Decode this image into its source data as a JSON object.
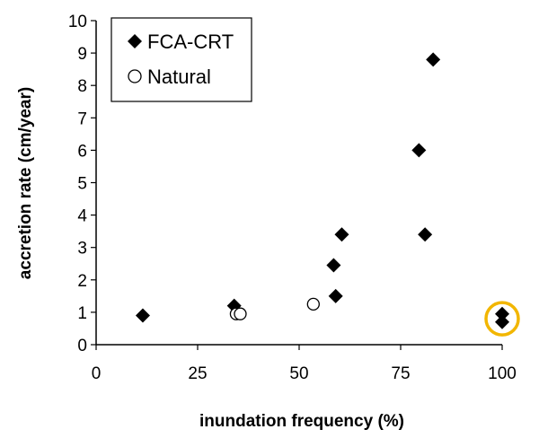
{
  "chart_data": {
    "type": "scatter",
    "title": "",
    "xlabel": "inundation frequency (%)",
    "ylabel": "accretion rate (cm/year)",
    "xlim": [
      0,
      100
    ],
    "ylim": [
      0,
      10
    ],
    "x_ticks": [
      0,
      25,
      50,
      75,
      100
    ],
    "y_ticks": [
      0,
      1,
      2,
      3,
      4,
      5,
      6,
      7,
      8,
      9,
      10
    ],
    "grid": false,
    "legend_position": "top-left",
    "series": [
      {
        "name": "FCA-CRT",
        "marker": "filled-diamond",
        "color": "#000000",
        "points": [
          {
            "x": 11.5,
            "y": 0.9
          },
          {
            "x": 34,
            "y": 1.2
          },
          {
            "x": 58.5,
            "y": 2.45
          },
          {
            "x": 59,
            "y": 1.5
          },
          {
            "x": 60.5,
            "y": 3.4
          },
          {
            "x": 79.5,
            "y": 6.0
          },
          {
            "x": 81,
            "y": 3.4
          },
          {
            "x": 83,
            "y": 8.8
          },
          {
            "x": 100,
            "y": 0.95
          },
          {
            "x": 100,
            "y": 0.7
          }
        ]
      },
      {
        "name": "Natural",
        "marker": "open-circle",
        "color": "#000000",
        "points": [
          {
            "x": 34.5,
            "y": 0.95
          },
          {
            "x": 35.5,
            "y": 0.95
          },
          {
            "x": 53.5,
            "y": 1.25
          }
        ]
      }
    ],
    "highlight": {
      "shape": "circle",
      "color": "#f2b600",
      "x": 100,
      "y": 0.8
    }
  }
}
